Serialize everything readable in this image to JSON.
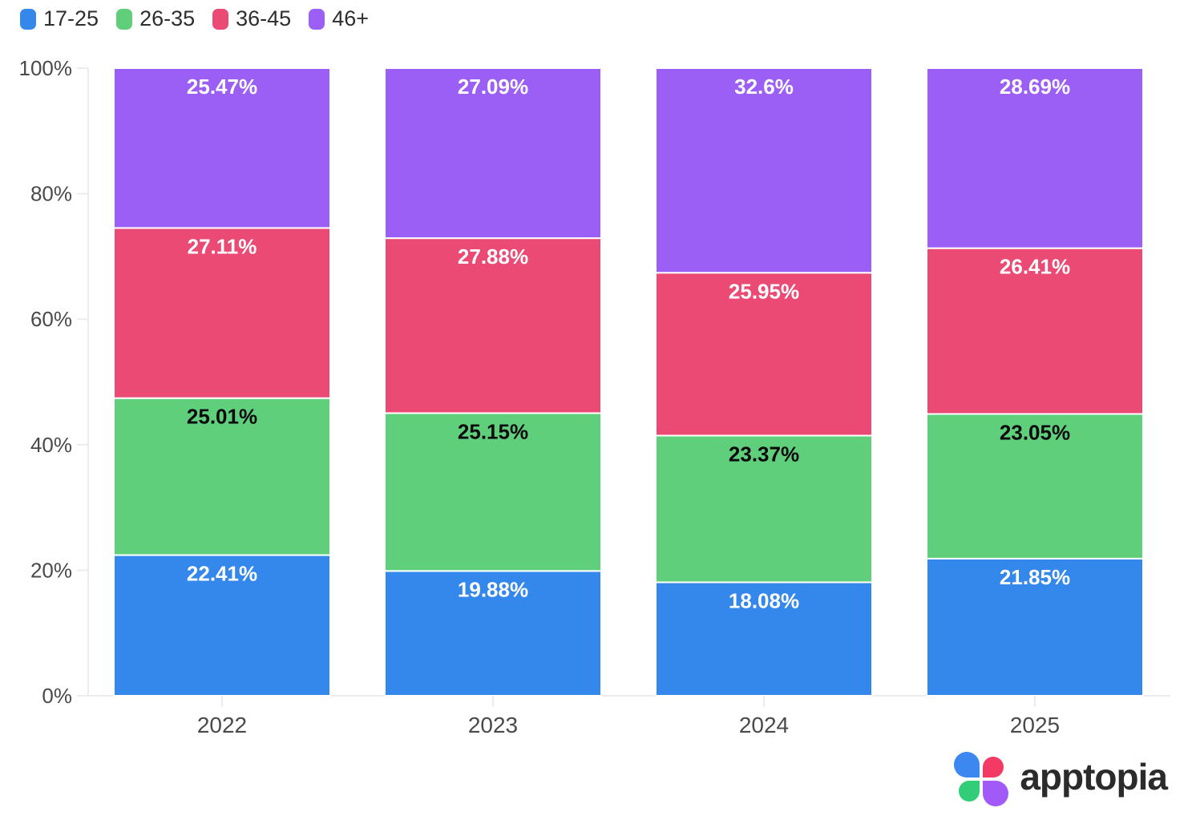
{
  "chart_data": {
    "type": "bar",
    "stacked": true,
    "title": "",
    "xlabel": "",
    "ylabel": "",
    "categories": [
      "2022",
      "2023",
      "2024",
      "2025"
    ],
    "series": [
      {
        "name": "17-25",
        "color": "#3488ec",
        "label_color": "#ffffff",
        "values": [
          22.41,
          19.88,
          18.08,
          21.85
        ],
        "labels": [
          "22.41%",
          "19.88%",
          "18.08%",
          "21.85%"
        ]
      },
      {
        "name": "26-35",
        "color": "#60cf7c",
        "label_color": "#0a0a0a",
        "values": [
          25.01,
          25.15,
          23.37,
          23.05
        ],
        "labels": [
          "25.01%",
          "25.15%",
          "23.37%",
          "23.05%"
        ]
      },
      {
        "name": "36-45",
        "color": "#ea4a74",
        "label_color": "#ffffff",
        "values": [
          27.11,
          27.88,
          25.95,
          26.41
        ],
        "labels": [
          "27.11%",
          "27.88%",
          "25.95%",
          "26.41%"
        ]
      },
      {
        "name": "46+",
        "color": "#9c5ff6",
        "label_color": "#ffffff",
        "values": [
          25.47,
          27.09,
          32.6,
          28.69
        ],
        "labels": [
          "25.47%",
          "27.09%",
          "32.6%",
          "28.69%"
        ]
      }
    ],
    "yticks": [
      {
        "value": 0,
        "label": "0%"
      },
      {
        "value": 20,
        "label": "20%"
      },
      {
        "value": 40,
        "label": "40%"
      },
      {
        "value": 60,
        "label": "60%"
      },
      {
        "value": 80,
        "label": "80%"
      },
      {
        "value": 100,
        "label": "100%"
      }
    ],
    "ylim": [
      0,
      100
    ],
    "grid": false,
    "legend_position": "top-left"
  },
  "colors": {
    "axis_line": "#ececec",
    "axis_text": "#4a4a4a",
    "segment_border": "#ffffff"
  },
  "branding": {
    "name": "apptopia",
    "petal_colors": {
      "blue": "#3d87f0",
      "pink": "#f23a65",
      "green": "#32cd79",
      "purple": "#a159f7"
    }
  }
}
